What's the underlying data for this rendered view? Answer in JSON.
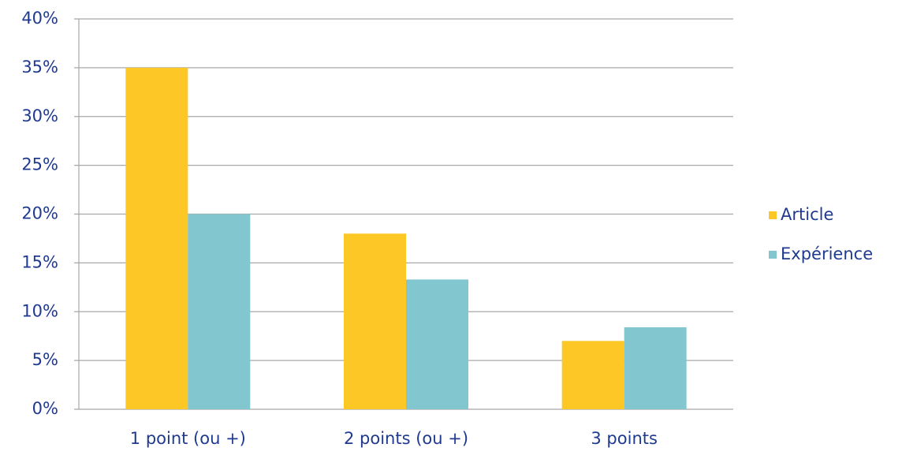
{
  "chart_data": {
    "type": "bar",
    "categories": [
      "1 point (ou +)",
      "2 points (ou +)",
      "3 points"
    ],
    "series": [
      {
        "name": "Article",
        "color": "#fdc726",
        "values": [
          35,
          18,
          7
        ]
      },
      {
        "name": "Expérience",
        "color": "#82c7d0",
        "values": [
          20,
          13.3,
          8.4
        ]
      }
    ],
    "ylim": [
      0,
      40
    ],
    "yticks": [
      {
        "value": 0,
        "label": "0%"
      },
      {
        "value": 5,
        "label": "5%"
      },
      {
        "value": 10,
        "label": "10%"
      },
      {
        "value": 15,
        "label": "15%"
      },
      {
        "value": 20,
        "label": "20%"
      },
      {
        "value": 25,
        "label": "25%"
      },
      {
        "value": 30,
        "label": "30%"
      },
      {
        "value": 35,
        "label": "35%"
      },
      {
        "value": 40,
        "label": "40%"
      }
    ],
    "grid": true,
    "legend": "right"
  }
}
